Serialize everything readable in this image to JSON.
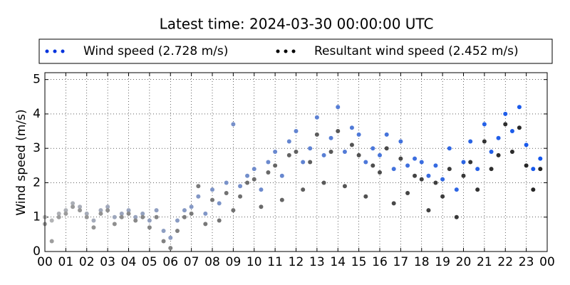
{
  "chart_data": {
    "type": "scatter",
    "title": "Latest time: 2024-03-30 00:00:00 UTC",
    "y_label": "Wind speed (m/s)",
    "x": [
      0,
      0.33,
      0.67,
      1,
      1.33,
      1.67,
      2,
      2.33,
      2.67,
      3,
      3.33,
      3.67,
      4,
      4.33,
      4.67,
      5,
      5.33,
      5.67,
      6,
      6.33,
      6.67,
      7,
      7.33,
      7.67,
      8,
      8.33,
      8.67,
      9,
      9.33,
      9.67,
      10,
      10.33,
      10.67,
      11,
      11.33,
      11.67,
      12,
      12.33,
      12.67,
      13,
      13.33,
      13.67,
      14,
      14.33,
      14.67,
      15,
      15.33,
      15.67,
      16,
      16.33,
      16.67,
      17,
      17.33,
      17.67,
      18,
      18.33,
      18.67,
      19,
      19.33,
      19.67,
      20,
      20.33,
      20.67,
      21,
      21.33,
      21.67,
      22,
      22.33,
      22.67,
      23,
      23.33,
      23.67
    ],
    "series": [
      {
        "name": "Wind speed (2.728 m/s)",
        "color": "#0033dd",
        "color_start": "#b4b4b4",
        "color_end": "#1155ee",
        "values": [
          1.0,
          0.9,
          1.1,
          1.2,
          1.4,
          1.3,
          1.1,
          0.9,
          1.2,
          1.3,
          1.0,
          1.1,
          1.2,
          1.0,
          1.1,
          0.9,
          1.2,
          0.6,
          0.4,
          0.9,
          1.2,
          1.3,
          1.6,
          1.1,
          1.8,
          1.4,
          2.0,
          3.7,
          1.9,
          2.2,
          2.4,
          1.8,
          2.6,
          2.9,
          2.2,
          3.2,
          3.5,
          2.6,
          3.0,
          3.9,
          2.8,
          3.3,
          4.2,
          2.9,
          3.6,
          3.4,
          2.6,
          3.0,
          2.8,
          3.4,
          2.4,
          3.2,
          2.5,
          2.7,
          2.6,
          2.2,
          2.5,
          2.1,
          3.0,
          1.8,
          2.6,
          3.2,
          2.4,
          3.7,
          2.9,
          3.3,
          4.0,
          3.5,
          4.2,
          3.1,
          2.4,
          2.7
        ]
      },
      {
        "name": "Resultant wind speed (2.452 m/s)",
        "color": "#000000",
        "color_start": "#a0a0a0",
        "color_end": "#222222",
        "values": [
          0.8,
          0.3,
          1.0,
          1.1,
          1.3,
          1.2,
          1.0,
          0.7,
          1.1,
          1.2,
          0.8,
          1.0,
          1.1,
          0.9,
          1.0,
          0.7,
          1.0,
          0.3,
          0.1,
          0.6,
          1.0,
          1.1,
          1.9,
          0.8,
          1.5,
          0.9,
          1.7,
          1.2,
          1.6,
          2.0,
          2.1,
          1.3,
          2.3,
          2.5,
          1.5,
          2.8,
          2.9,
          1.8,
          2.6,
          3.4,
          2.0,
          2.9,
          3.5,
          1.9,
          3.1,
          2.8,
          1.6,
          2.5,
          2.3,
          3.0,
          1.4,
          2.7,
          1.7,
          2.2,
          2.1,
          1.2,
          2.0,
          1.6,
          2.4,
          1.0,
          2.2,
          2.6,
          1.8,
          3.2,
          2.4,
          2.8,
          3.7,
          2.9,
          3.6,
          2.5,
          1.8,
          2.4
        ]
      }
    ],
    "xlim": [
      0,
      24
    ],
    "xticks": [
      {
        "value": 0,
        "label": "00"
      },
      {
        "value": 1,
        "label": "01"
      },
      {
        "value": 2,
        "label": "02"
      },
      {
        "value": 3,
        "label": "03"
      },
      {
        "value": 4,
        "label": "04"
      },
      {
        "value": 5,
        "label": "05"
      },
      {
        "value": 6,
        "label": "06"
      },
      {
        "value": 7,
        "label": "07"
      },
      {
        "value": 8,
        "label": "08"
      },
      {
        "value": 9,
        "label": "09"
      },
      {
        "value": 10,
        "label": "10"
      },
      {
        "value": 11,
        "label": "11"
      },
      {
        "value": 12,
        "label": "12"
      },
      {
        "value": 13,
        "label": "13"
      },
      {
        "value": 14,
        "label": "14"
      },
      {
        "value": 15,
        "label": "15"
      },
      {
        "value": 16,
        "label": "16"
      },
      {
        "value": 17,
        "label": "17"
      },
      {
        "value": 18,
        "label": "18"
      },
      {
        "value": 19,
        "label": "19"
      },
      {
        "value": 20,
        "label": "20"
      },
      {
        "value": 21,
        "label": "21"
      },
      {
        "value": 22,
        "label": "22"
      },
      {
        "value": 23,
        "label": "23"
      },
      {
        "value": 24,
        "label": "00"
      }
    ],
    "ylim": [
      0,
      5.2
    ],
    "yticks": [
      0,
      1,
      2,
      3,
      4,
      5
    ],
    "grid": true
  }
}
